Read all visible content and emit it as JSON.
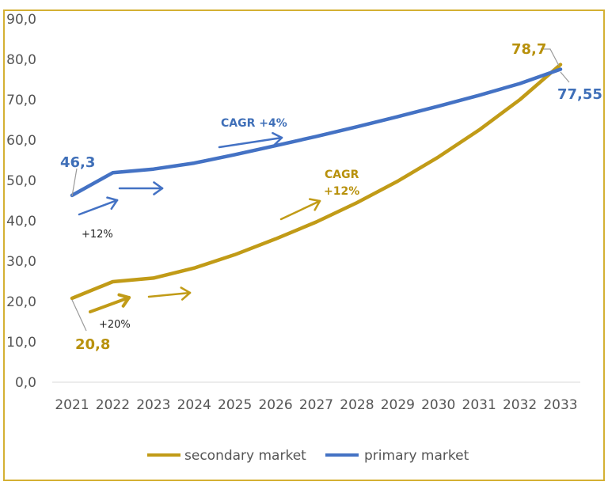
{
  "chart_data": {
    "type": "line",
    "categories": [
      "2021",
      "2022",
      "2023",
      "2024",
      "2025",
      "2026",
      "2027",
      "2028",
      "2029",
      "2030",
      "2031",
      "2032",
      "2033"
    ],
    "y_ticks": [
      "0,0",
      "10,0",
      "20,0",
      "30,0",
      "40,0",
      "50,0",
      "60,0",
      "70,0",
      "80,0",
      "90,0"
    ],
    "ylim": [
      0,
      90
    ],
    "series": [
      {
        "name": "secondary market",
        "color": "#c19b17",
        "values": [
          20.8,
          24.9,
          25.8,
          28.3,
          31.6,
          35.5,
          39.7,
          44.5,
          49.8,
          55.8,
          62.5,
          70.0,
          78.7
        ]
      },
      {
        "name": "primary market",
        "color": "#4472c4",
        "values": [
          46.3,
          51.9,
          52.8,
          54.3,
          56.4,
          58.6,
          60.9,
          63.3,
          65.8,
          68.4,
          71.1,
          74.0,
          77.55
        ]
      }
    ],
    "annotations": {
      "secondary_start": "20,8",
      "secondary_end": "78,7",
      "primary_start": "46,3",
      "primary_end": "77,55",
      "primary_cagr": "CAGR +4%",
      "secondary_cagr_line1": "CAGR",
      "secondary_cagr_line2": "+12%",
      "primary_growth": "+12%",
      "secondary_growth": "+20%"
    },
    "legend_position": "bottom"
  }
}
